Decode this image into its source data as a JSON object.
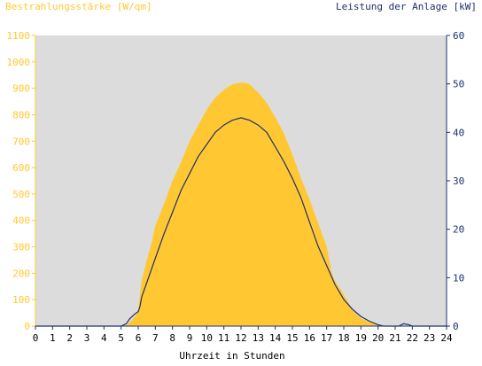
{
  "chart_data": {
    "type": "area",
    "left_axis_label": "Bestrahlungsstärke [W/qm]",
    "right_axis_label": "Leistung der Anlage [kW]",
    "xlabel": "Uhrzeit in Stunden",
    "xlim": [
      0,
      24
    ],
    "ylim_left": [
      0,
      1100
    ],
    "ylim_right": [
      0,
      60
    ],
    "x_ticks": [
      "0",
      "1",
      "2",
      "3",
      "4",
      "5",
      "6",
      "7",
      "8",
      "9",
      "10",
      "11",
      "12",
      "13",
      "14",
      "15",
      "16",
      "17",
      "18",
      "19",
      "20",
      "21",
      "22",
      "23",
      "24"
    ],
    "y_ticks_left": [
      "0",
      "100",
      "200",
      "300",
      "400",
      "500",
      "600",
      "700",
      "800",
      "900",
      "1000",
      "1100"
    ],
    "y_ticks_right": [
      "0",
      "10",
      "20",
      "30",
      "40",
      "50",
      "60"
    ],
    "grid": false,
    "series": [
      {
        "name": "Bestrahlungsstärke [W/qm]",
        "axis": "left",
        "style": "area",
        "color": "#FFC832",
        "x": [
          0,
          5,
          5.3,
          5.6,
          5.8,
          6.0,
          6.1,
          6.2,
          6.3,
          6.5,
          6.8,
          7.0,
          7.5,
          8.0,
          8.5,
          9.0,
          9.5,
          10.0,
          10.5,
          11.0,
          11.5,
          12.0,
          12.3,
          12.5,
          13.0,
          13.5,
          14.0,
          14.5,
          15.0,
          15.5,
          16.0,
          16.5,
          17.0,
          17.3,
          17.5,
          18.0,
          18.5,
          19.0,
          19.5,
          20.0,
          20.3,
          20.5,
          24
        ],
        "y": [
          0,
          0,
          5,
          20,
          35,
          60,
          120,
          170,
          200,
          250,
          320,
          380,
          460,
          550,
          620,
          700,
          760,
          820,
          865,
          895,
          915,
          922,
          920,
          915,
          885,
          845,
          790,
          730,
          650,
          560,
          480,
          390,
          300,
          200,
          170,
          120,
          60,
          30,
          15,
          5,
          0,
          0,
          0
        ]
      },
      {
        "name": "Leistung der Anlage [kW]",
        "axis": "right",
        "style": "line",
        "color": "#1F2F6E",
        "x": [
          0,
          5,
          5.3,
          5.5,
          5.8,
          6.0,
          6.1,
          6.2,
          6.5,
          7.0,
          7.5,
          8.0,
          8.5,
          9.0,
          9.5,
          10.0,
          10.5,
          11.0,
          11.5,
          12.0,
          12.5,
          13.0,
          13.5,
          14.0,
          14.5,
          15.0,
          15.5,
          16.0,
          16.5,
          17.0,
          17.5,
          18.0,
          18.5,
          19.0,
          19.5,
          20.0,
          20.3,
          21.2,
          21.5,
          21.8,
          22.0,
          24
        ],
        "y": [
          0,
          0,
          0.5,
          1.5,
          2.5,
          3.0,
          4.0,
          6.0,
          9.0,
          14.0,
          19.0,
          23.5,
          28.0,
          31.5,
          35.0,
          37.5,
          40.0,
          41.5,
          42.5,
          43.0,
          42.5,
          41.5,
          40.0,
          37.0,
          34.0,
          30.5,
          26.5,
          21.5,
          16.5,
          12.5,
          8.5,
          5.5,
          3.5,
          2.0,
          1.0,
          0.3,
          0,
          0,
          0.5,
          0.3,
          0,
          0
        ]
      }
    ]
  }
}
